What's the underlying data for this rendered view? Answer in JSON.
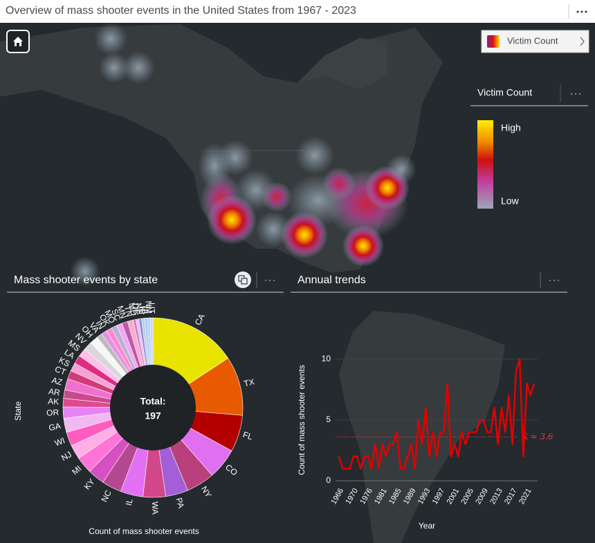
{
  "header": {
    "title": "Overview of mass shooter events in the United States from 1967 - 2023"
  },
  "map": {
    "layer_button": "Victim Count",
    "legend": {
      "title": "Victim Count",
      "high": "High",
      "low": "Low"
    }
  },
  "chart_data": [
    {
      "type": "pie",
      "title": "Mass shooter events by state",
      "y_label": "State",
      "x_label": "Count of mass shooter events",
      "center_label": "Total:",
      "total": 197,
      "categories": [
        "CA",
        "TX",
        "FL",
        "CO",
        "NY",
        "PA",
        "WA",
        "IL",
        "NC",
        "KY",
        "MI",
        "NJ",
        "WI",
        "GA",
        "OR",
        "AK",
        "AR",
        "AZ",
        "CT",
        "KS",
        "LA",
        "MS",
        "NV",
        "OH",
        "VA",
        "IN",
        "OK",
        "MO",
        "SC",
        "MN",
        "TN",
        "MD",
        "DC",
        "NE",
        "HI",
        "IA",
        "NM",
        "UT"
      ],
      "values": [
        31,
        21,
        13,
        11,
        10,
        8,
        8,
        8,
        7,
        6,
        6,
        5,
        5,
        5,
        4,
        3,
        3,
        4,
        3,
        3,
        3,
        3,
        3,
        3,
        2,
        2,
        2,
        2,
        2,
        2,
        2,
        1,
        1,
        1,
        1,
        1,
        1,
        1
      ],
      "colors": [
        "#e8e400",
        "#e85a00",
        "#b50000",
        "#e070f0",
        "#b8407c",
        "#a45ed8",
        "#d2468a",
        "#e270f2",
        "#b44890",
        "#d650c4",
        "#ff74d6",
        "#ffaee6",
        "#ff5cc0",
        "#f2b8f2",
        "#e684f4",
        "#e04890",
        "#c84a8c",
        "#f070d0",
        "#d03c78",
        "#f8a0d8",
        "#e02c80",
        "#ffc0ec",
        "#d8d8d8",
        "#f6f6f6",
        "#bcbcbc",
        "#e890e8",
        "#ff88c8",
        "#b8b0d8",
        "#f0a8f0",
        "#c058a8",
        "#f2b0cc",
        "#d87ad0",
        "#e8c0f0",
        "#9090d0",
        "#b0d0f0",
        "#c0c0f0",
        "#a8d8f0",
        "#d0d0f8"
      ]
    },
    {
      "type": "line",
      "title": "Annual trends",
      "x_label": "Year",
      "y_label": "Count of mass shooter events",
      "categories": [
        "1966",
        null,
        null,
        null,
        "1970",
        null,
        null,
        null,
        "1976",
        null,
        null,
        null,
        "1981",
        null,
        null,
        null,
        "1985",
        null,
        null,
        null,
        "1989",
        null,
        null,
        null,
        "1993",
        null,
        null,
        null,
        "1997",
        null,
        null,
        null,
        "2001",
        null,
        null,
        null,
        "2005",
        null,
        null,
        null,
        "2009",
        null,
        null,
        null,
        "2013",
        null,
        null,
        null,
        "2017",
        null,
        null,
        null,
        "2021",
        null,
        null
      ],
      "values": [
        2,
        1,
        1,
        1,
        2,
        2,
        1,
        2,
        2,
        1,
        3,
        1,
        3,
        2,
        3,
        3,
        4,
        1,
        1,
        2,
        3,
        1,
        5,
        3,
        6,
        2,
        4,
        2,
        4,
        4,
        8,
        2,
        3,
        2,
        4,
        3,
        4,
        4,
        4,
        5,
        5,
        4,
        4,
        6,
        3,
        6,
        4,
        7,
        3,
        9,
        10,
        2,
        8,
        7,
        8
      ],
      "color": "#e40000",
      "ylim": [
        0,
        11
      ],
      "yticks": [
        0,
        5,
        10
      ],
      "grid": true,
      "mean": 3.6,
      "mean_label": "x̄ = 3.6"
    }
  ]
}
